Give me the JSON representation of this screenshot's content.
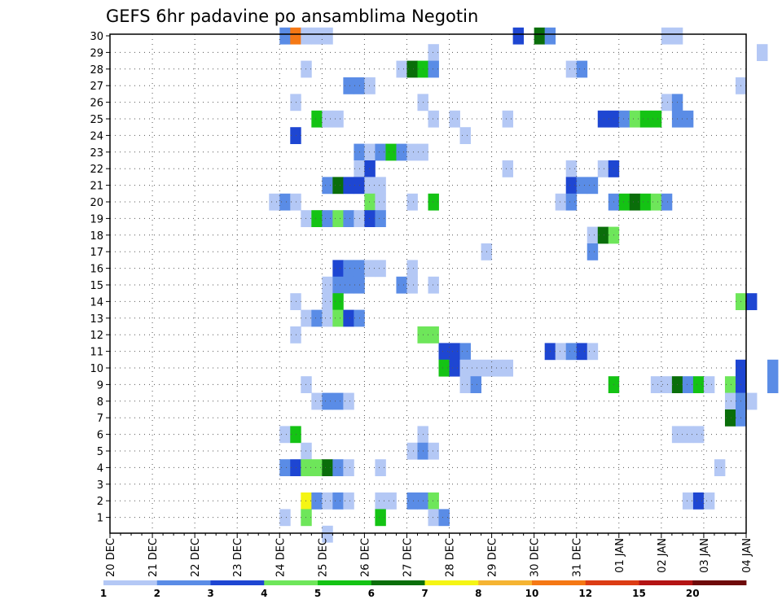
{
  "chart_data": {
    "type": "heatmap",
    "title": "GEFS 6hr padavine po ansamblima Negotin",
    "y_labels": [
      "1",
      "2",
      "3",
      "4",
      "5",
      "6",
      "7",
      "8",
      "9",
      "10",
      "11",
      "12",
      "13",
      "14",
      "15",
      "16",
      "17",
      "18",
      "19",
      "20",
      "21",
      "22",
      "23",
      "24",
      "25",
      "26",
      "27",
      "28",
      "29",
      "30"
    ],
    "x_labels": [
      "20 DEC",
      "21 DEC",
      "22 DEC",
      "23 DEC",
      "24 DEC",
      "25 DEC",
      "26 DEC",
      "27 DEC",
      "28 DEC",
      "29 DEC",
      "30 DEC",
      "31 DEC",
      "01 JAN",
      "02 JAN",
      "03 JAN",
      "04 JAN"
    ],
    "steps_per_day": 4,
    "grid": true,
    "colorbar": {
      "labels": [
        "1",
        "2",
        "3",
        "4",
        "5",
        "6",
        "7",
        "8",
        "10",
        "12",
        "15",
        "20"
      ],
      "colors": [
        "#b4c8f5",
        "#5a8ce6",
        "#1e46d2",
        "#6ee65a",
        "#14c314",
        "#0a6e0a",
        "#f5f514",
        "#f5b432",
        "#f57814",
        "#dc3c14",
        "#b41414",
        "#6e0a0a"
      ]
    },
    "cells": [
      [
        30,
        16,
        2
      ],
      [
        30,
        17,
        9
      ],
      [
        30,
        18,
        1
      ],
      [
        30,
        19,
        1
      ],
      [
        30,
        20,
        1
      ],
      [
        30,
        38,
        3
      ],
      [
        30,
        40,
        6
      ],
      [
        30,
        41,
        2
      ],
      [
        30,
        52,
        1
      ],
      [
        30,
        53,
        1
      ],
      [
        29,
        30,
        1
      ],
      [
        29,
        61,
        1
      ],
      [
        28,
        18,
        1
      ],
      [
        28,
        27,
        1
      ],
      [
        28,
        28,
        6
      ],
      [
        28,
        29,
        5
      ],
      [
        28,
        30,
        2
      ],
      [
        28,
        43,
        1
      ],
      [
        28,
        44,
        2
      ],
      [
        27,
        22,
        2
      ],
      [
        27,
        23,
        2
      ],
      [
        27,
        24,
        1
      ],
      [
        27,
        59,
        1
      ],
      [
        26,
        17,
        1
      ],
      [
        26,
        29,
        1
      ],
      [
        26,
        52,
        1
      ],
      [
        26,
        53,
        2
      ],
      [
        25,
        19,
        5
      ],
      [
        25,
        20,
        1
      ],
      [
        25,
        21,
        1
      ],
      [
        25,
        30,
        1
      ],
      [
        25,
        32,
        1
      ],
      [
        25,
        37,
        1
      ],
      [
        25,
        46,
        3
      ],
      [
        25,
        47,
        3
      ],
      [
        25,
        48,
        2
      ],
      [
        25,
        49,
        4
      ],
      [
        25,
        50,
        5
      ],
      [
        25,
        51,
        5
      ],
      [
        25,
        53,
        2
      ],
      [
        25,
        54,
        2
      ],
      [
        24,
        17,
        3
      ],
      [
        24,
        33,
        1
      ],
      [
        23,
        23,
        2
      ],
      [
        23,
        24,
        1
      ],
      [
        23,
        25,
        2
      ],
      [
        23,
        26,
        5
      ],
      [
        23,
        27,
        2
      ],
      [
        23,
        28,
        1
      ],
      [
        23,
        29,
        1
      ],
      [
        22,
        23,
        1
      ],
      [
        22,
        24,
        3
      ],
      [
        22,
        37,
        1
      ],
      [
        22,
        43,
        1
      ],
      [
        22,
        46,
        1
      ],
      [
        22,
        47,
        3
      ],
      [
        21,
        20,
        2
      ],
      [
        21,
        21,
        6
      ],
      [
        21,
        22,
        3
      ],
      [
        21,
        23,
        3
      ],
      [
        21,
        24,
        1
      ],
      [
        21,
        25,
        1
      ],
      [
        21,
        43,
        3
      ],
      [
        21,
        44,
        2
      ],
      [
        21,
        45,
        2
      ],
      [
        20,
        15,
        1
      ],
      [
        20,
        16,
        2
      ],
      [
        20,
        17,
        1
      ],
      [
        20,
        24,
        4
      ],
      [
        20,
        25,
        1
      ],
      [
        20,
        28,
        1
      ],
      [
        20,
        30,
        5
      ],
      [
        20,
        42,
        1
      ],
      [
        20,
        43,
        2
      ],
      [
        20,
        47,
        2
      ],
      [
        20,
        48,
        5
      ],
      [
        20,
        49,
        6
      ],
      [
        20,
        50,
        5
      ],
      [
        20,
        51,
        4
      ],
      [
        20,
        52,
        2
      ],
      [
        19,
        18,
        1
      ],
      [
        19,
        19,
        5
      ],
      [
        19,
        20,
        2
      ],
      [
        19,
        21,
        4
      ],
      [
        19,
        22,
        2
      ],
      [
        19,
        23,
        1
      ],
      [
        19,
        24,
        3
      ],
      [
        19,
        25,
        2
      ],
      [
        18,
        45,
        1
      ],
      [
        18,
        46,
        6
      ],
      [
        18,
        47,
        4
      ],
      [
        17,
        35,
        1
      ],
      [
        17,
        45,
        2
      ],
      [
        16,
        21,
        3
      ],
      [
        16,
        22,
        2
      ],
      [
        16,
        23,
        2
      ],
      [
        16,
        24,
        1
      ],
      [
        16,
        25,
        1
      ],
      [
        16,
        28,
        1
      ],
      [
        15,
        20,
        1
      ],
      [
        15,
        21,
        2
      ],
      [
        15,
        22,
        2
      ],
      [
        15,
        23,
        2
      ],
      [
        15,
        27,
        2
      ],
      [
        15,
        28,
        1
      ],
      [
        15,
        30,
        1
      ],
      [
        14,
        17,
        1
      ],
      [
        14,
        20,
        1
      ],
      [
        14,
        21,
        5
      ],
      [
        14,
        59,
        4
      ],
      [
        14,
        60,
        3
      ],
      [
        13,
        18,
        1
      ],
      [
        13,
        19,
        2
      ],
      [
        13,
        20,
        1
      ],
      [
        13,
        21,
        4
      ],
      [
        13,
        22,
        3
      ],
      [
        13,
        23,
        2
      ],
      [
        12,
        17,
        1
      ],
      [
        12,
        29,
        4
      ],
      [
        12,
        30,
        4
      ],
      [
        11,
        31,
        3
      ],
      [
        11,
        32,
        3
      ],
      [
        11,
        33,
        2
      ],
      [
        11,
        41,
        3
      ],
      [
        11,
        42,
        1
      ],
      [
        11,
        43,
        2
      ],
      [
        11,
        44,
        3
      ],
      [
        11,
        45,
        1
      ],
      [
        10,
        31,
        5
      ],
      [
        10,
        32,
        3
      ],
      [
        10,
        33,
        1
      ],
      [
        10,
        34,
        1
      ],
      [
        10,
        35,
        1
      ],
      [
        10,
        36,
        1
      ],
      [
        10,
        37,
        1
      ],
      [
        10,
        59,
        3
      ],
      [
        10,
        62,
        2
      ],
      [
        9,
        18,
        1
      ],
      [
        9,
        33,
        1
      ],
      [
        9,
        34,
        2
      ],
      [
        9,
        47,
        5
      ],
      [
        9,
        51,
        1
      ],
      [
        9,
        52,
        1
      ],
      [
        9,
        53,
        6
      ],
      [
        9,
        54,
        2
      ],
      [
        9,
        55,
        5
      ],
      [
        9,
        56,
        1
      ],
      [
        9,
        58,
        4
      ],
      [
        9,
        59,
        3
      ],
      [
        9,
        62,
        2
      ],
      [
        8,
        19,
        1
      ],
      [
        8,
        20,
        2
      ],
      [
        8,
        21,
        2
      ],
      [
        8,
        22,
        1
      ],
      [
        8,
        58,
        1
      ],
      [
        8,
        59,
        2
      ],
      [
        8,
        60,
        1
      ],
      [
        7,
        58,
        6
      ],
      [
        7,
        59,
        2
      ],
      [
        6,
        16,
        1
      ],
      [
        6,
        17,
        5
      ],
      [
        6,
        29,
        1
      ],
      [
        6,
        53,
        1
      ],
      [
        6,
        54,
        1
      ],
      [
        6,
        55,
        1
      ],
      [
        5,
        18,
        1
      ],
      [
        5,
        28,
        1
      ],
      [
        5,
        29,
        2
      ],
      [
        5,
        30,
        1
      ],
      [
        4,
        16,
        2
      ],
      [
        4,
        17,
        3
      ],
      [
        4,
        18,
        4
      ],
      [
        4,
        19,
        4
      ],
      [
        4,
        20,
        6
      ],
      [
        4,
        21,
        2
      ],
      [
        4,
        22,
        1
      ],
      [
        4,
        25,
        1
      ],
      [
        4,
        57,
        1
      ],
      [
        2,
        18,
        7
      ],
      [
        2,
        19,
        2
      ],
      [
        2,
        20,
        1
      ],
      [
        2,
        21,
        2
      ],
      [
        2,
        22,
        1
      ],
      [
        2,
        25,
        1
      ],
      [
        2,
        26,
        1
      ],
      [
        2,
        28,
        2
      ],
      [
        2,
        29,
        2
      ],
      [
        2,
        30,
        4
      ],
      [
        2,
        54,
        1
      ],
      [
        2,
        55,
        3
      ],
      [
        2,
        56,
        1
      ],
      [
        1,
        16,
        1
      ],
      [
        1,
        18,
        4
      ],
      [
        1,
        25,
        5
      ],
      [
        1,
        30,
        1
      ],
      [
        1,
        31,
        2
      ],
      [
        0,
        20,
        1
      ]
    ]
  }
}
